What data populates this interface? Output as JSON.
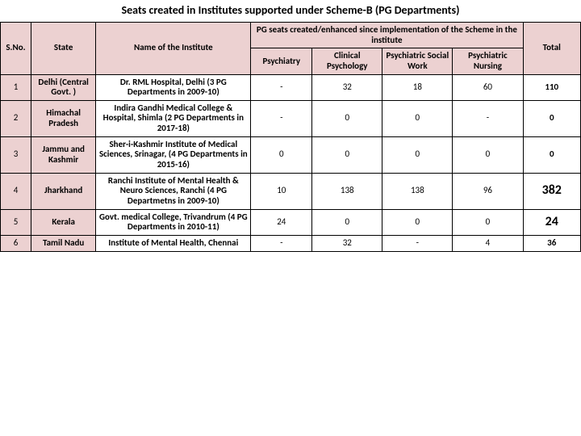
{
  "title": "Seats created in Institutes supported under Scheme-B (PG Departments)",
  "colors": {
    "header_bg": "#ecd1d1",
    "border": "#000000",
    "text": "#000000",
    "row_bg": "#ffffff"
  },
  "fonts": {
    "title_size_pt": 14,
    "header_size_pt": 11,
    "cell_size_pt": 11,
    "total_emph_size_pt": 16,
    "family": "Calibri"
  },
  "columns": {
    "sno": "S.No.",
    "state": "State",
    "institute": "Name of the Institute",
    "group": "PG seats created/enhanced since implementation of the Scheme in the institute",
    "psychiatry": "Psychiatry",
    "clinical": "Clinical Psychology",
    "social_work": "Psychiatric Social Work",
    "nursing": "Psychiatric Nursing",
    "total": "Total"
  },
  "rows": [
    {
      "sno": "1",
      "state": "Delhi (Central Govt. )",
      "institute": "Dr. RML Hospital, Delhi  (3 PG Departments in 2009-10)",
      "psychiatry": "-",
      "clinical": "32",
      "social_work": "18",
      "nursing": "60",
      "total": "110",
      "total_emph": false
    },
    {
      "sno": "2",
      "state": "Himachal Pradesh",
      "institute": "Indira Gandhi Medical College & Hospital, Shimla (2 PG Departments in 2017-18)",
      "psychiatry": "-",
      "clinical": "0",
      "social_work": "0",
      "nursing": "-",
      "total": "0",
      "total_emph": false
    },
    {
      "sno": "3",
      "state": "Jammu and Kashmir",
      "institute": "Sher-i-Kashmir Institute of Medical Sciences, Srinagar, (4 PG Departments in 2015-16)",
      "psychiatry": "0",
      "clinical": "0",
      "social_work": "0",
      "nursing": "0",
      "total": "0",
      "total_emph": false
    },
    {
      "sno": "4",
      "state": "Jharkhand",
      "institute": "Ranchi Institute of Mental Health & Neuro Sciences, Ranchi (4 PG Departmetns in 2009-10)",
      "psychiatry": "10",
      "clinical": "138",
      "social_work": "138",
      "nursing": "96",
      "total": "382",
      "total_emph": true
    },
    {
      "sno": "5",
      "state": "Kerala",
      "institute": "Govt. medical College, Trivandrum (4 PG Departments in 2010-11)",
      "psychiatry": "24",
      "clinical": "0",
      "social_work": "0",
      "nursing": "0",
      "total": "24",
      "total_emph": true
    },
    {
      "sno": "6",
      "state": "Tamil Nadu",
      "institute": "Institute of Mental Health, Chennai",
      "psychiatry": "-",
      "clinical": "32",
      "social_work": "-",
      "nursing": "4",
      "total": "36",
      "total_emph": false
    }
  ]
}
